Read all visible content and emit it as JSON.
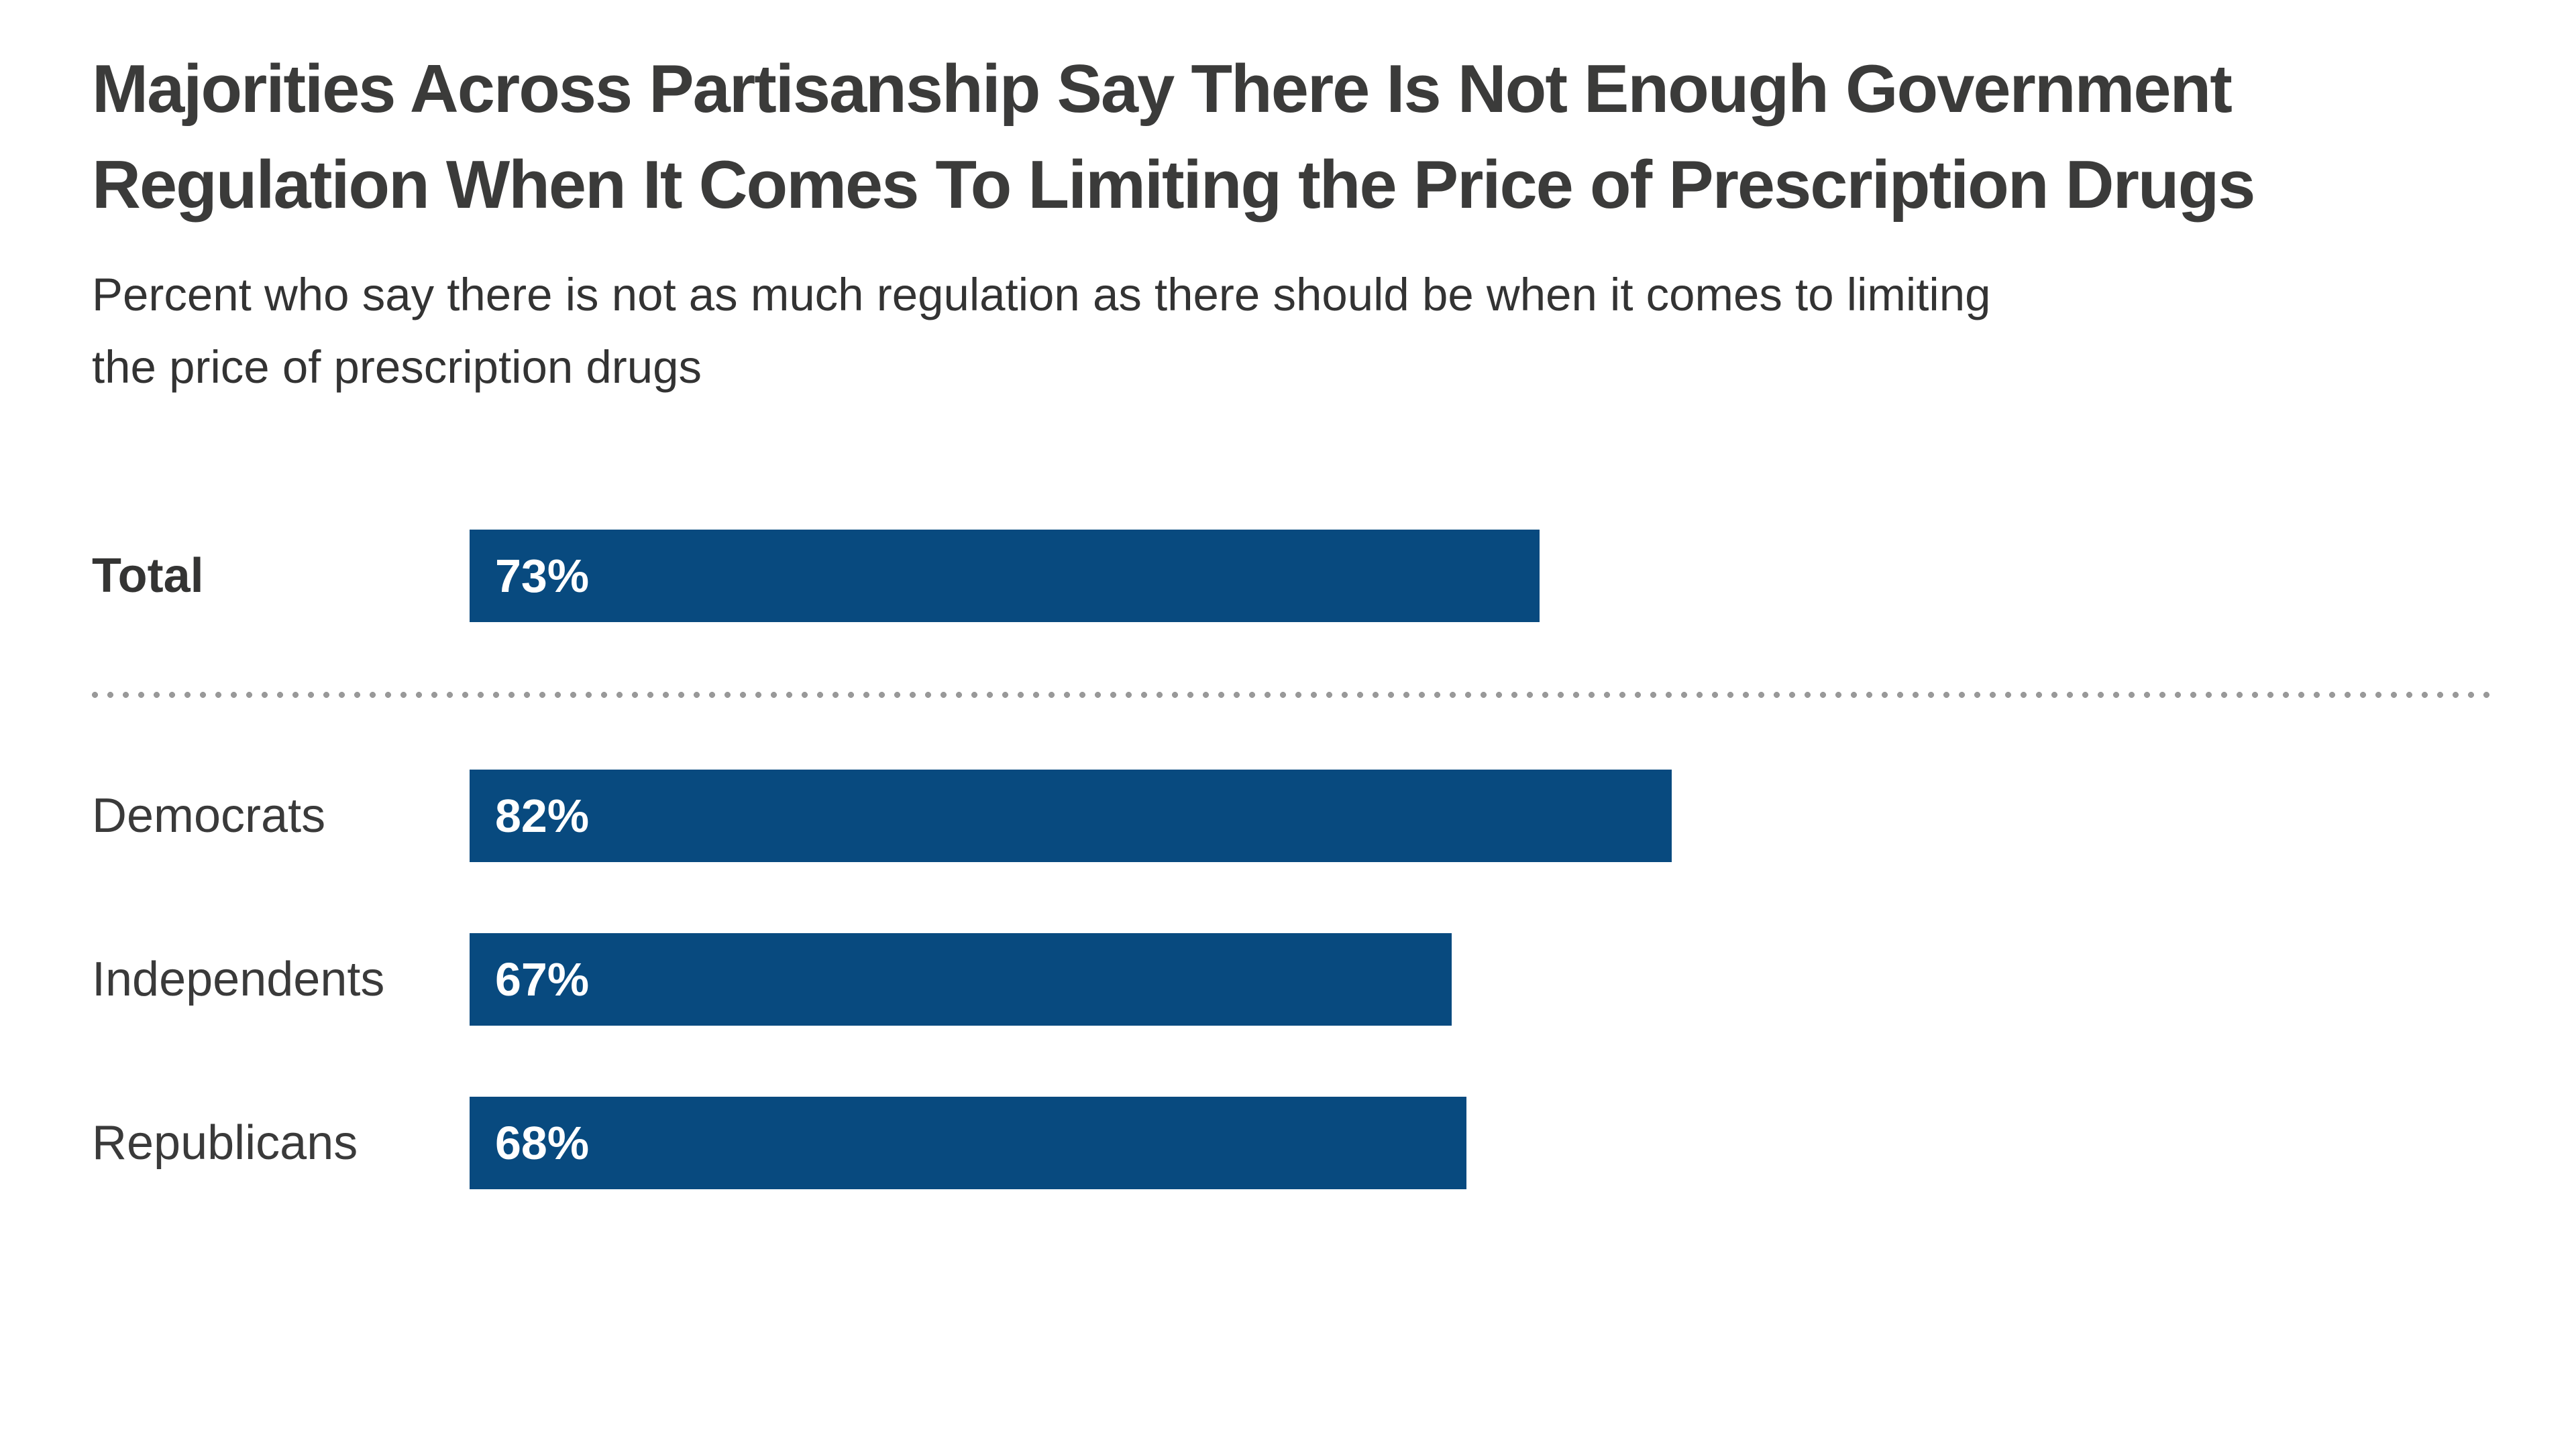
{
  "meta": {
    "background_color": "#ffffff",
    "bar_color": "#084a7f",
    "title_color": "#3b3b3a",
    "text_color": "#333333",
    "divider_color": "#999999"
  },
  "header": {
    "title": "Majorities Across Partisanship Say There Is Not Enough Government Regulation When It Comes To Limiting the Price of Prescription Drugs",
    "title_lines": [
      "Majorities Across Partisanship Say There Is Not Enough Government",
      "Regulation When It Comes To Limiting the Price of Prescription Drugs"
    ],
    "subtitle": "Percent who say there is not as much regulation as there should be when it comes to limiting the price of prescription drugs",
    "subtitle_lines": [
      "Percent who say there is not as much regulation as there should be when it comes to limiting",
      "the price of prescription drugs"
    ]
  },
  "chart_data": {
    "type": "bar",
    "orientation": "horizontal",
    "title": "Majorities Across Partisanship Say There Is Not Enough Government Regulation When It Comes To Limiting the Price of Prescription Drugs",
    "subtitle": "Percent who say there is not as much regulation as there should be when it comes to limiting the price of prescription drugs",
    "categories": [
      "Total",
      "Democrats",
      "Independents",
      "Republicans"
    ],
    "values": [
      73,
      82,
      67,
      68
    ],
    "xlim": [
      0,
      100
    ],
    "unit": "percent",
    "grid": false,
    "legend": false,
    "bar_color": "#084a7f",
    "divider_between": [
      "Total",
      "Democrats"
    ],
    "rows": [
      {
        "label": "Total",
        "value": 73,
        "display": "73%"
      },
      {
        "label": "Democrats",
        "value": 82,
        "display": "82%"
      },
      {
        "label": "Independents",
        "value": 67,
        "display": "67%"
      },
      {
        "label": "Republicans",
        "value": 68,
        "display": "68%"
      }
    ]
  }
}
